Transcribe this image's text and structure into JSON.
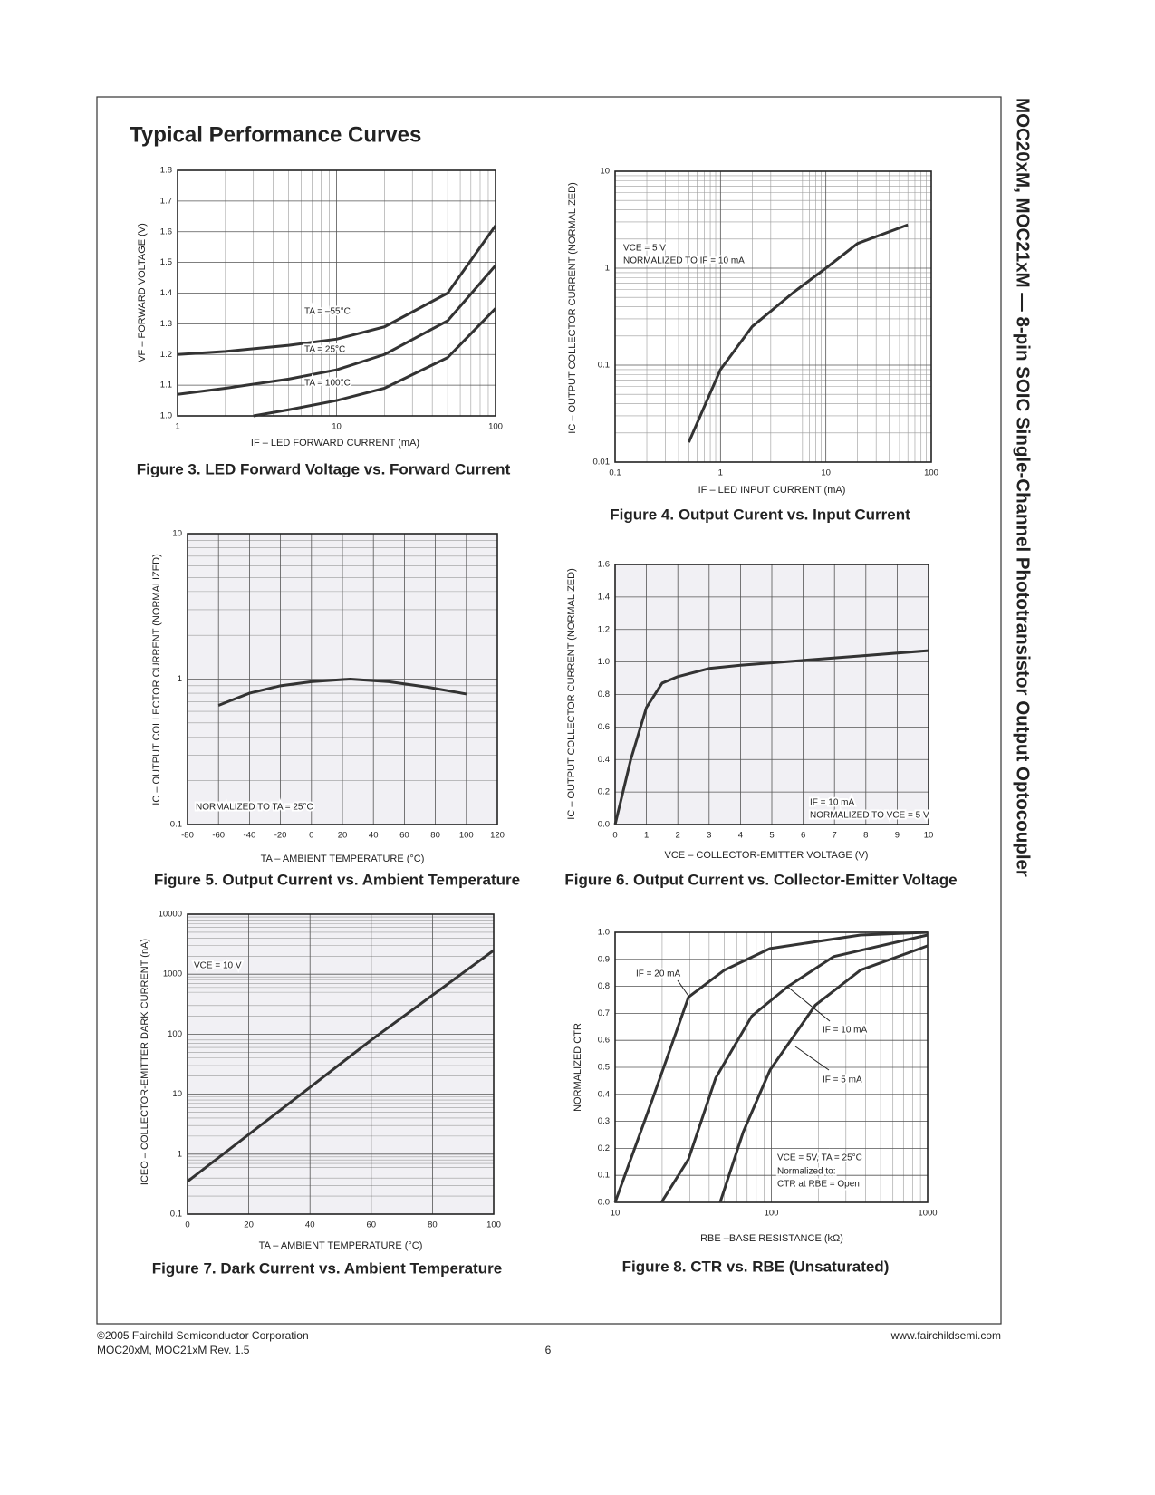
{
  "title": "Typical Performance Curves",
  "side_title": "MOC20xM, MOC21xM — 8-pin SOIC Single-Channel Phototransistor Output Optocoupler",
  "footer": {
    "copyright": "©2005 Fairchild Semiconductor Corporation",
    "revision": "MOC20xM, MOC21xM Rev. 1.5",
    "page": "6",
    "url": "www.fairchildsemi.com"
  },
  "chart_data": [
    {
      "type": "line",
      "title": "Figure 3. LED Forward Voltage vs. Forward Current",
      "x_label": "IF – LED FORWARD CURRENT (mA)",
      "y_label": "VF – FORWARD VOLTAGE (V)",
      "xlog": true,
      "grid": true,
      "xlim": [
        1,
        100
      ],
      "xticks": [
        1,
        10,
        100
      ],
      "ylim": [
        1.0,
        1.8
      ],
      "yticks": [
        {
          "value": 1.0,
          "label": "1.0"
        },
        1.1,
        1.2,
        1.3,
        1.4,
        1.5,
        1.6,
        1.7,
        1.8
      ],
      "series": [
        {
          "name": "TA = –55°C",
          "color": "#333333",
          "x": [
            1,
            2,
            5,
            10,
            20,
            50,
            100
          ],
          "values": [
            1.2,
            1.21,
            1.23,
            1.25,
            1.29,
            1.4,
            1.62
          ]
        },
        {
          "name": "TA = 25°C",
          "color": "#333333",
          "x": [
            1,
            2,
            5,
            10,
            20,
            50,
            100
          ],
          "values": [
            1.07,
            1.09,
            1.12,
            1.15,
            1.2,
            1.31,
            1.49
          ]
        },
        {
          "name": "TA = 100°C",
          "color": "#333333",
          "x": [
            3,
            5,
            10,
            20,
            50,
            100
          ],
          "values": [
            1.0,
            1.02,
            1.05,
            1.09,
            1.19,
            1.35
          ]
        }
      ]
    },
    {
      "type": "line",
      "title": "Figure 4. Output Curent vs. Input Current",
      "x_label": "IF – LED INPUT CURRENT (mA)",
      "y_label": "IC – OUTPUT COLLECTOR CURRENT (NORMALIZED)",
      "xlog": true,
      "ylog": true,
      "grid": true,
      "xlim": [
        0.1,
        100
      ],
      "xticks": [
        0.1,
        1,
        10,
        100
      ],
      "ylim": [
        0.01,
        10
      ],
      "yticks": [
        0.01,
        0.1,
        1,
        10
      ],
      "annotations": [
        "VCE = 5 V",
        "NORMALIZED TO IF = 10 mA"
      ],
      "series": [
        {
          "color": "#333333",
          "x": [
            0.5,
            1,
            2,
            5,
            10,
            20,
            60
          ],
          "values": [
            0.016,
            0.09,
            0.25,
            0.57,
            1.0,
            1.8,
            2.8
          ]
        }
      ]
    },
    {
      "type": "line",
      "title": "Figure 5. Output Current vs. Ambient Temperature",
      "x_label": "TA – AMBIENT TEMPERATURE (°C)",
      "y_label": "IC – OUTPUT COLLECTOR  CURRENT (NORMALIZED)",
      "ylog": true,
      "grid": true,
      "background": "#f1f0f4",
      "xlim": [
        -80,
        120
      ],
      "xticks": [
        -80,
        -60,
        -40,
        -20,
        0,
        20,
        40,
        60,
        80,
        100,
        120
      ],
      "ylim": [
        0.1,
        10
      ],
      "yticks": [
        0.1,
        1,
        10
      ],
      "annotations": [
        "NORMALIZED TO TA = 25°C"
      ],
      "series": [
        {
          "color": "#333333",
          "x": [
            -60,
            -40,
            -20,
            0,
            25,
            50,
            75,
            100
          ],
          "values": [
            0.66,
            0.8,
            0.9,
            0.96,
            1.0,
            0.96,
            0.88,
            0.79
          ]
        }
      ]
    },
    {
      "type": "line",
      "title": "Figure 6. Output Current vs. Collector-Emitter Voltage",
      "x_label": "VCE – COLLECTOR-EMITTER VOLTAGE (V)",
      "y_label": "IC – OUTPUT COLLECTOR CURRENT (NORMALIZED)",
      "grid": true,
      "background": "#f1f0f4",
      "xlim": [
        0,
        10
      ],
      "xticks": [
        0,
        1,
        2,
        3,
        4,
        5,
        6,
        7,
        8,
        9,
        10
      ],
      "ylim": [
        0,
        1.6
      ],
      "yticks": [
        {
          "value": 0,
          "label": "0.0"
        },
        0.2,
        0.4,
        0.6,
        0.8,
        {
          "value": 1,
          "label": "1.0"
        },
        1.2,
        1.4,
        1.6
      ],
      "annotations": [
        "IF = 10 mA",
        "NORMALIZED TO VCE = 5 V"
      ],
      "series": [
        {
          "color": "#333333",
          "x": [
            0,
            0.5,
            1,
            1.5,
            2,
            3,
            4,
            6,
            8,
            10
          ],
          "values": [
            0,
            0.4,
            0.72,
            0.87,
            0.91,
            0.96,
            0.98,
            1.01,
            1.04,
            1.07
          ]
        }
      ]
    },
    {
      "type": "line",
      "title": "Figure 7. Dark Current vs. Ambient Temperature",
      "x_label": "TA – AMBIENT TEMPERATURE (°C)",
      "y_label": "ICEO – COLLECTOR-EMITTER DARK CURRENT (nA)",
      "ylog": true,
      "grid": true,
      "background": "#f1f0f4",
      "xlim": [
        0,
        100
      ],
      "xticks": [
        0,
        20,
        40,
        60,
        80,
        100
      ],
      "ylim": [
        0.1,
        10000
      ],
      "yticks": [
        0.1,
        1,
        10,
        100,
        1000,
        10000
      ],
      "annotations": [
        "VCE = 10 V"
      ],
      "series": [
        {
          "color": "#333333",
          "x": [
            0,
            40,
            60,
            100
          ],
          "values": [
            0.35,
            13,
            80,
            2500
          ]
        }
      ]
    },
    {
      "type": "line",
      "title": "Figure 8. CTR vs. RBE (Unsaturated)",
      "x_label": "RBE –BASE RESISTANCE (kΩ)",
      "y_label": "NORMALIZED CTR",
      "xlog": true,
      "grid": true,
      "xlim": [
        10,
        1000
      ],
      "xticks": [
        10,
        100,
        1000
      ],
      "ylim": [
        0,
        1.0
      ],
      "yticks": [
        {
          "value": 0,
          "label": "0.0"
        },
        0.1,
        0.2,
        0.3,
        0.4,
        0.5,
        0.6,
        0.7,
        0.8,
        0.9,
        {
          "value": 1,
          "label": "1.0"
        }
      ],
      "annotations": [
        "VCE = 5V, TA = 25°C",
        "Normalized to:",
        "CTR at RBE = Open"
      ],
      "series": [
        {
          "name": "IF =  20 mA",
          "color": "#333333",
          "x": [
            10,
            17.3,
            29.5,
            50,
            98,
            372,
            1000
          ],
          "values": [
            0,
            0.38,
            0.76,
            0.86,
            0.94,
            0.99,
            1.0
          ]
        },
        {
          "name": "IF = 10 mA",
          "color": "#333333",
          "x": [
            19.8,
            29.5,
            44,
            75,
            128,
            250,
            1000
          ],
          "values": [
            0,
            0.16,
            0.46,
            0.69,
            0.8,
            0.91,
            0.99
          ]
        },
        {
          "name": "IF = 5 mA",
          "color": "#333333",
          "x": [
            47,
            66,
            98,
            191,
            372,
            1000
          ],
          "values": [
            0,
            0.26,
            0.49,
            0.73,
            0.86,
            0.95
          ]
        }
      ]
    }
  ]
}
